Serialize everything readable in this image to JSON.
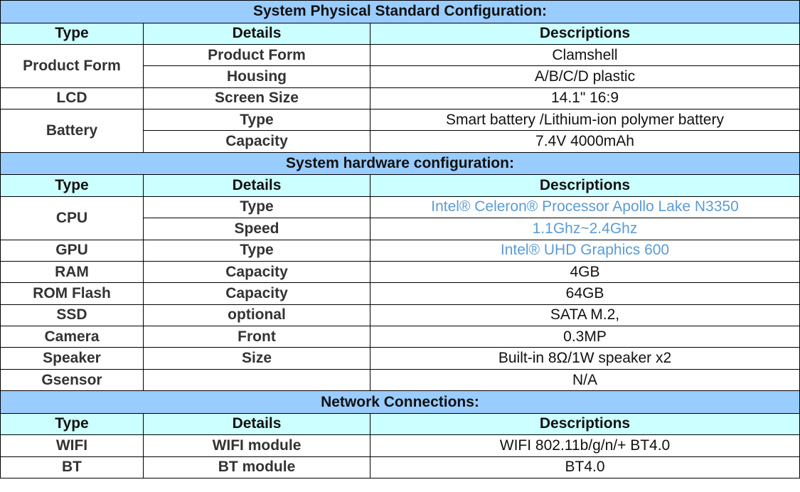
{
  "colors": {
    "section_bg": "#99ccff",
    "header_bg": "#ccffff",
    "highlight_text": "#5b9bd5"
  },
  "columns": {
    "type": "Type",
    "details": "Details",
    "descriptions": "Descriptions"
  },
  "sections": [
    {
      "title": "System Physical Standard Configuration:",
      "groups": [
        {
          "type": "Product Form",
          "items": [
            {
              "details": "Product Form",
              "description": "Clamshell"
            },
            {
              "details": "Housing",
              "description": "A/B/C/D plastic"
            }
          ]
        },
        {
          "type": "LCD",
          "items": [
            {
              "details": "Screen Size",
              "description": "14.1\" 16:9"
            }
          ]
        },
        {
          "type": "Battery",
          "items": [
            {
              "details": "Type",
              "description": "Smart battery /Lithium-ion polymer battery"
            },
            {
              "details": "Capacity",
              "description": "7.4V 4000mAh"
            }
          ]
        }
      ]
    },
    {
      "title": "System hardware configuration:",
      "groups": [
        {
          "type": "CPU",
          "items": [
            {
              "details": "Type",
              "description": "Intel® Celeron® Processor Apollo Lake N3350",
              "highlight": true
            },
            {
              "details": "Speed",
              "description": "1.1Ghz~2.4Ghz",
              "highlight": true
            }
          ]
        },
        {
          "type": "GPU",
          "items": [
            {
              "details": "Type",
              "description": "Intel® UHD Graphics 600",
              "highlight": true
            }
          ]
        },
        {
          "type": "RAM",
          "items": [
            {
              "details": "Capacity",
              "description": "4GB"
            }
          ]
        },
        {
          "type": "ROM  Flash",
          "items": [
            {
              "details": "Capacity",
              "description": "64GB"
            }
          ]
        },
        {
          "type": "SSD",
          "items": [
            {
              "details": "optional",
              "description": "SATA M.2,"
            }
          ]
        },
        {
          "type": "Camera",
          "items": [
            {
              "details": "Front",
              "description": "0.3MP"
            }
          ]
        },
        {
          "type": "Speaker",
          "items": [
            {
              "details": "Size",
              "description": "Built-in 8Ω/1W speaker x2"
            }
          ]
        },
        {
          "type": "Gsensor",
          "items": [
            {
              "details": "",
              "description": "N/A"
            }
          ]
        }
      ]
    },
    {
      "title": "Network Connections:",
      "groups": [
        {
          "type": "WIFI",
          "items": [
            {
              "details": "WIFI module",
              "description": "WIFI 802.11b/g/n/+ BT4.0"
            }
          ]
        },
        {
          "type": "BT",
          "items": [
            {
              "details": "BT module",
              "description": "BT4.0"
            }
          ]
        }
      ]
    }
  ]
}
